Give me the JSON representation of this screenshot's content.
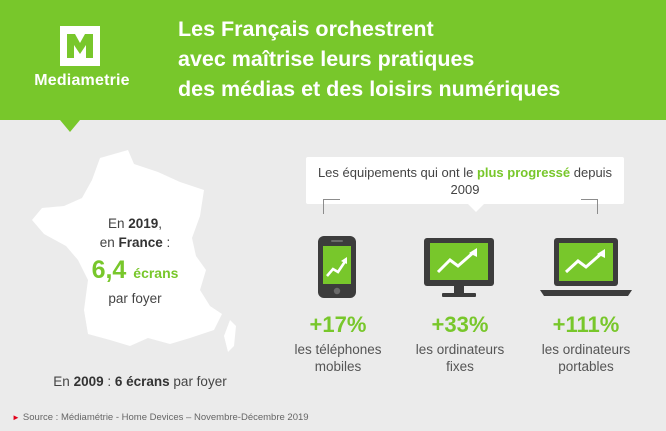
{
  "brand": {
    "name": "Mediametrie",
    "color_primary": "#78c72b",
    "color_dark": "#3c3c3c"
  },
  "headline": [
    "Les Français orchestrent",
    "avec maîtrise leurs pratiques",
    "des médias et des loisirs numériques"
  ],
  "france": {
    "line1_prefix": "En ",
    "line1_year": "2019",
    "line1_suffix": ",",
    "line2_prefix": "en ",
    "line2_country": "France",
    "line2_suffix": " :",
    "big_value": "6,4",
    "big_unit": "écrans",
    "per_home": "par foyer"
  },
  "footnote_2009": {
    "prefix": "En ",
    "year": "2009",
    "mid": " : ",
    "value": "6 écrans",
    "suffix": " par foyer"
  },
  "callout": {
    "part1": "Les équipements qui ont le ",
    "highlight": "plus progressé",
    "part2": " depuis 2009"
  },
  "devices": [
    {
      "icon": "smartphone-icon",
      "pct": "+17%",
      "label_line1": "les téléphones",
      "label_line2": "mobiles"
    },
    {
      "icon": "desktop-monitor-icon",
      "pct": "+33%",
      "label_line1": "les ordinateurs",
      "label_line2": "fixes"
    },
    {
      "icon": "laptop-icon",
      "pct": "+111%",
      "label_line1": "les ordinateurs",
      "label_line2": "portables"
    }
  ],
  "source": "Source : Médiamétrie - Home Devices – Novembre-Décembre 2019"
}
